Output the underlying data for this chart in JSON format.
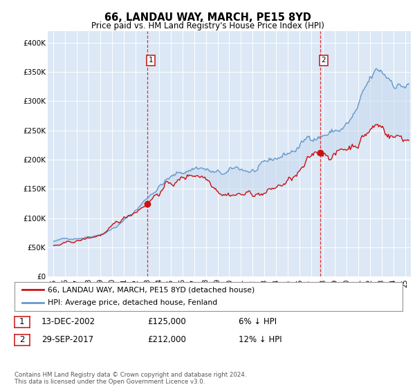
{
  "title": "66, LANDAU WAY, MARCH, PE15 8YD",
  "subtitle": "Price paid vs. HM Land Registry's House Price Index (HPI)",
  "bg_color": "#dce8f5",
  "hpi_color": "#6699cc",
  "hpi_fill_color": "#c5d8ee",
  "price_color": "#cc1111",
  "marker1_x": 2003.0,
  "marker1_value": 125000,
  "marker2_x": 2017.75,
  "marker2_value": 212000,
  "marker1_label": "13-DEC-2002",
  "marker2_label": "29-SEP-2017",
  "marker1_price": "£125,000",
  "marker2_price": "£212,000",
  "marker1_pct": "6% ↓ HPI",
  "marker2_pct": "12% ↓ HPI",
  "legend_label1": "66, LANDAU WAY, MARCH, PE15 8YD (detached house)",
  "legend_label2": "HPI: Average price, detached house, Fenland",
  "footer": "Contains HM Land Registry data © Crown copyright and database right 2024.\nThis data is licensed under the Open Government Licence v3.0.",
  "ylim": [
    0,
    420000
  ],
  "yticks": [
    0,
    50000,
    100000,
    150000,
    200000,
    250000,
    300000,
    350000,
    400000
  ],
  "ytick_labels": [
    "£0",
    "£50K",
    "£100K",
    "£150K",
    "£200K",
    "£250K",
    "£300K",
    "£350K",
    "£400K"
  ],
  "xmin": 1995.0,
  "xmax": 2025.5
}
